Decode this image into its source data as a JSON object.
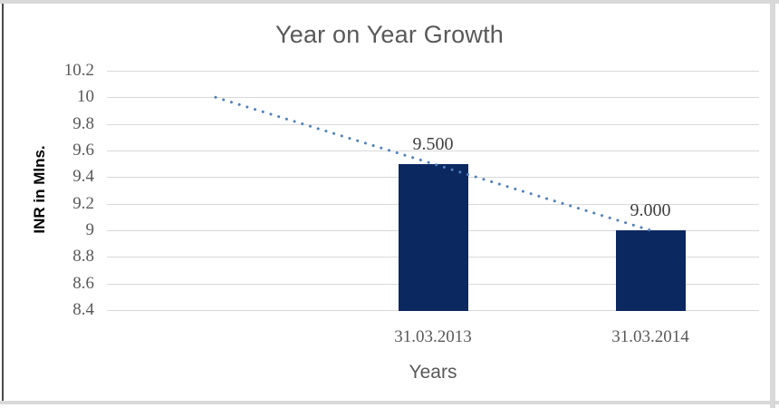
{
  "window": {
    "frame_color": "#d9d9d9",
    "left_edge_color": "#4a4a4a",
    "background": "#ffffff"
  },
  "chart_data": {
    "type": "bar",
    "title": "Year on Year Growth",
    "xlabel": "Years",
    "ylabel": "INR in Mlns.",
    "categories": [
      "",
      "31.03.2013",
      "31.03.2014"
    ],
    "values": [
      null,
      9.5,
      9.0
    ],
    "data_labels": [
      null,
      "9.500",
      "9.000"
    ],
    "ylim": [
      8.4,
      10.2
    ],
    "ytick_step": 0.2,
    "ytick_labels": [
      "8.4",
      "8.6",
      "8.8",
      "9",
      "9.2",
      "9.4",
      "9.6",
      "9.8",
      "10",
      "10.2"
    ],
    "grid": true,
    "legend": "none",
    "colors": {
      "bar": "#0c2861",
      "trendline": "#4f81bd",
      "gridline": "#d9d9d9",
      "title_text": "#595959",
      "tick_text": "#595959",
      "data_label_text": "#3f3f3f",
      "axis_title_text": "#000000"
    },
    "trendline": {
      "style": "dotted",
      "start": {
        "category_index": 0,
        "value": 10.0
      },
      "end": {
        "category_index": 2,
        "value": 9.0
      }
    }
  }
}
